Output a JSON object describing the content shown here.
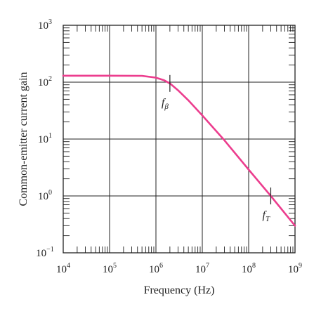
{
  "chart_data": {
    "type": "line",
    "title": "",
    "xlabel": "Frequency (Hz)",
    "ylabel": "Common-emitter current gain",
    "x_scale": "log",
    "y_scale": "log",
    "xlim": [
      10000,
      1000000000
    ],
    "ylim": [
      0.1,
      1000
    ],
    "grid": true,
    "x_ticks": [
      {
        "base": "10",
        "exp": "4",
        "value": 10000
      },
      {
        "base": "10",
        "exp": "5",
        "value": 100000
      },
      {
        "base": "10",
        "exp": "6",
        "value": 1000000
      },
      {
        "base": "10",
        "exp": "7",
        "value": 10000000
      },
      {
        "base": "10",
        "exp": "8",
        "value": 100000000
      },
      {
        "base": "10",
        "exp": "9",
        "value": 1000000000
      }
    ],
    "y_ticks": [
      {
        "base": "10",
        "exp": "−1",
        "value": 0.1
      },
      {
        "base": "10",
        "exp": "0",
        "value": 1
      },
      {
        "base": "10",
        "exp": "1",
        "value": 10
      },
      {
        "base": "10",
        "exp": "2",
        "value": 100
      },
      {
        "base": "10",
        "exp": "3",
        "value": 1000
      }
    ],
    "series": [
      {
        "color": "#ec3d8e",
        "x": [
          10000,
          100000,
          500000,
          1000000,
          1500000,
          2000000,
          3000000,
          5000000,
          10000000,
          30000000,
          100000000,
          300000000,
          1000000000
        ],
        "y": [
          130,
          130,
          129,
          120,
          108,
          95,
          72,
          48,
          26,
          9.5,
          2.9,
          1,
          0.3
        ]
      }
    ],
    "annotations": [
      {
        "main": "f",
        "sub": "β",
        "x": 2000000,
        "y": 95
      },
      {
        "main": "f",
        "sub": "T",
        "x": 300000000,
        "y": 1
      }
    ]
  }
}
